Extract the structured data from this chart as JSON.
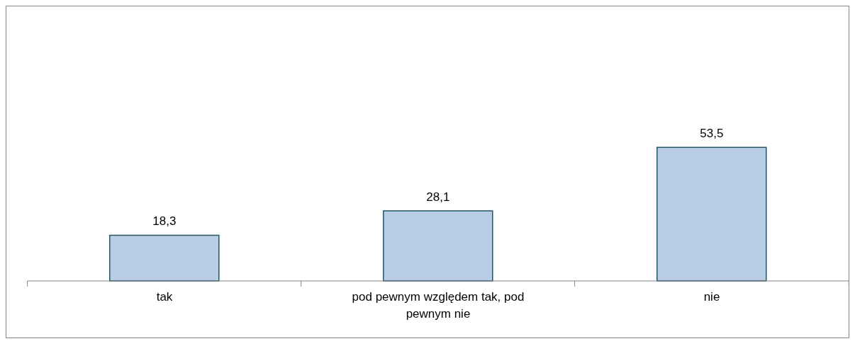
{
  "chart_data": {
    "type": "bar",
    "categories": [
      "tak",
      "pod pewnym względem tak, pod pewnym nie",
      "nie"
    ],
    "values": [
      18.3,
      28.1,
      53.5
    ],
    "color": "#b9cde5",
    "value_labels": [
      "18,3",
      "28,1",
      "53,5"
    ]
  }
}
